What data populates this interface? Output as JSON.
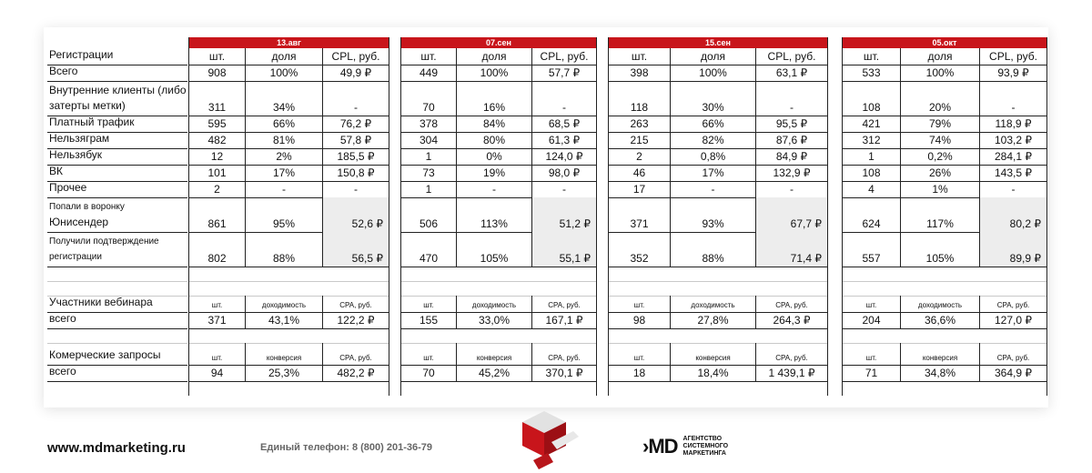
{
  "row_labels": {
    "registrations": "Регистрации",
    "total": "Всего",
    "internal_l1": "Внутренние клиенты (либо",
    "internal_l2": "затерты метки)",
    "paid": "Платный трафик",
    "ig": "Нельзяграм",
    "fb": "Нельзябук",
    "vk": "ВК",
    "other": "Прочее",
    "funnel_l1": "Попали в воронку",
    "funnel_l2": "Юнисендер",
    "confirm_l1": "Получили подтверждение",
    "confirm_l2": "регистрации",
    "webinar": "Участники вебинара",
    "webinar_total": "всего",
    "requests": "Комерческие запросы",
    "requests_total": "всего"
  },
  "headers": {
    "reg": [
      "шт.",
      "доля",
      "CPL, руб."
    ],
    "webinar": [
      "шт.",
      "доходимость",
      "CPA, руб."
    ],
    "requests": [
      "шт.",
      "конверсия",
      "CPA, руб."
    ]
  },
  "periods": [
    {
      "date": "13.авг",
      "total": [
        "908",
        "100%",
        "49,9 ₽"
      ],
      "internal": [
        "311",
        "34%",
        "-"
      ],
      "paid": [
        "595",
        "66%",
        "76,2 ₽"
      ],
      "ig": [
        "482",
        "81%",
        "57,8 ₽"
      ],
      "fb": [
        "12",
        "2%",
        "185,5 ₽"
      ],
      "vk": [
        "101",
        "17%",
        "150,8 ₽"
      ],
      "other": [
        "2",
        "-",
        "-"
      ],
      "funnel": [
        "861",
        "95%",
        "52,6 ₽"
      ],
      "confirm": [
        "802",
        "88%",
        "56,5 ₽"
      ],
      "webinar": [
        "371",
        "43,1%",
        "122,2 ₽"
      ],
      "requests": [
        "94",
        "25,3%",
        "482,2 ₽"
      ]
    },
    {
      "date": "07.сен",
      "total": [
        "449",
        "100%",
        "57,7 ₽"
      ],
      "internal": [
        "70",
        "16%",
        "-"
      ],
      "paid": [
        "378",
        "84%",
        "68,5 ₽"
      ],
      "ig": [
        "304",
        "80%",
        "61,3 ₽"
      ],
      "fb": [
        "1",
        "0%",
        "124,0 ₽"
      ],
      "vk": [
        "73",
        "19%",
        "98,0 ₽"
      ],
      "other": [
        "1",
        "-",
        "-"
      ],
      "funnel": [
        "506",
        "113%",
        "51,2 ₽"
      ],
      "confirm": [
        "470",
        "105%",
        "55,1 ₽"
      ],
      "webinar": [
        "155",
        "33,0%",
        "167,1 ₽"
      ],
      "requests": [
        "70",
        "45,2%",
        "370,1 ₽"
      ]
    },
    {
      "date": "15.сен",
      "total": [
        "398",
        "100%",
        "63,1 ₽"
      ],
      "internal": [
        "118",
        "30%",
        "-"
      ],
      "paid": [
        "263",
        "66%",
        "95,5 ₽"
      ],
      "ig": [
        "215",
        "82%",
        "87,6 ₽"
      ],
      "fb": [
        "2",
        "0,8%",
        "84,9 ₽"
      ],
      "vk": [
        "46",
        "17%",
        "132,9 ₽"
      ],
      "other": [
        "17",
        "-",
        "-"
      ],
      "funnel": [
        "371",
        "93%",
        "67,7 ₽"
      ],
      "confirm": [
        "352",
        "88%",
        "71,4 ₽"
      ],
      "webinar": [
        "98",
        "27,8%",
        "264,3 ₽"
      ],
      "requests": [
        "18",
        "18,4%",
        "1 439,1 ₽"
      ]
    },
    {
      "date": "05.окт",
      "total": [
        "533",
        "100%",
        "93,9 ₽"
      ],
      "internal": [
        "108",
        "20%",
        "-"
      ],
      "paid": [
        "421",
        "79%",
        "118,9 ₽"
      ],
      "ig": [
        "312",
        "74%",
        "103,2 ₽"
      ],
      "fb": [
        "1",
        "0,2%",
        "284,1 ₽"
      ],
      "vk": [
        "108",
        "26%",
        "143,5 ₽"
      ],
      "other": [
        "4",
        "1%",
        "-"
      ],
      "funnel": [
        "624",
        "117%",
        "80,2 ₽"
      ],
      "confirm": [
        "557",
        "105%",
        "89,9 ₽"
      ],
      "webinar": [
        "204",
        "36,6%",
        "127,0 ₽"
      ],
      "requests": [
        "71",
        "34,8%",
        "364,9 ₽"
      ]
    }
  ],
  "footer": {
    "site": "www.mdmarketing.ru",
    "phone": "Единый телефон: 8 (800) 201-36-79",
    "brand_glyph_a": "›M",
    "brand_glyph_b": "D",
    "brand_line1": "АГЕНТСТВО",
    "brand_line2": "СИСТЕМНОГО",
    "brand_line3": "МАРКЕТИНГА"
  },
  "colors": {
    "accent": "#c8151b",
    "shade": "#ededed"
  }
}
